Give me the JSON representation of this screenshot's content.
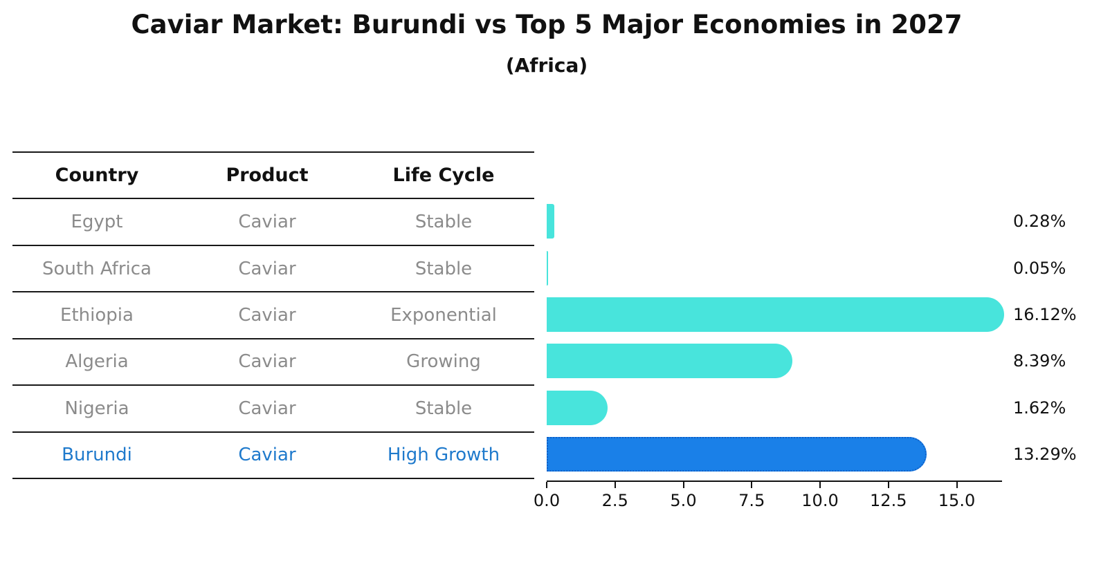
{
  "title": "Caviar Market: Burundi vs Top 5 Major Economies in 2027",
  "subtitle": "(Africa)",
  "table": {
    "headers": [
      "Country",
      "Product",
      "Life Cycle"
    ],
    "rows": [
      {
        "country": "Egypt",
        "product": "Caviar",
        "life_cycle": "Stable",
        "highlight": false
      },
      {
        "country": "South Africa",
        "product": "Caviar",
        "life_cycle": "Stable",
        "highlight": false
      },
      {
        "country": "Ethiopia",
        "product": "Caviar",
        "life_cycle": "Exponential",
        "highlight": false
      },
      {
        "country": "Algeria",
        "product": "Caviar",
        "life_cycle": "Growing",
        "highlight": false
      },
      {
        "country": "Nigeria",
        "product": "Caviar",
        "life_cycle": "Stable",
        "highlight": false
      },
      {
        "country": "Burundi",
        "product": "Caviar",
        "life_cycle": "High Growth",
        "highlight": true
      }
    ]
  },
  "chart_data": {
    "type": "bar",
    "orientation": "horizontal",
    "title": "Caviar Market: Burundi vs Top 5 Major Economies in 2027",
    "subtitle": "(Africa)",
    "categories": [
      "Egypt",
      "South Africa",
      "Ethiopia",
      "Algeria",
      "Nigeria",
      "Burundi"
    ],
    "values": [
      0.28,
      0.05,
      16.12,
      8.39,
      1.62,
      13.29
    ],
    "value_labels": [
      "0.28%",
      "0.05%",
      "16.12%",
      "8.39%",
      "1.62%",
      "13.29%"
    ],
    "highlight_index": 5,
    "xlim": [
      0,
      16.6
    ],
    "x_tick_values": [
      0,
      2.5,
      5,
      7.5,
      10,
      12.5,
      15
    ],
    "x_tick_labels": [
      "0.0",
      "2.5",
      "5.0",
      "7.5",
      "10.0",
      "12.5",
      "15.0"
    ],
    "grid": false,
    "legend": false
  },
  "colors": {
    "bar": "#48E4DC",
    "highlight_bar": "#1A80E8",
    "highlight_border": "#1060C8",
    "highlight_text": "#1f7acc",
    "table_text": "#8b8b8b",
    "header_text": "#111111",
    "axis": "#111111"
  }
}
